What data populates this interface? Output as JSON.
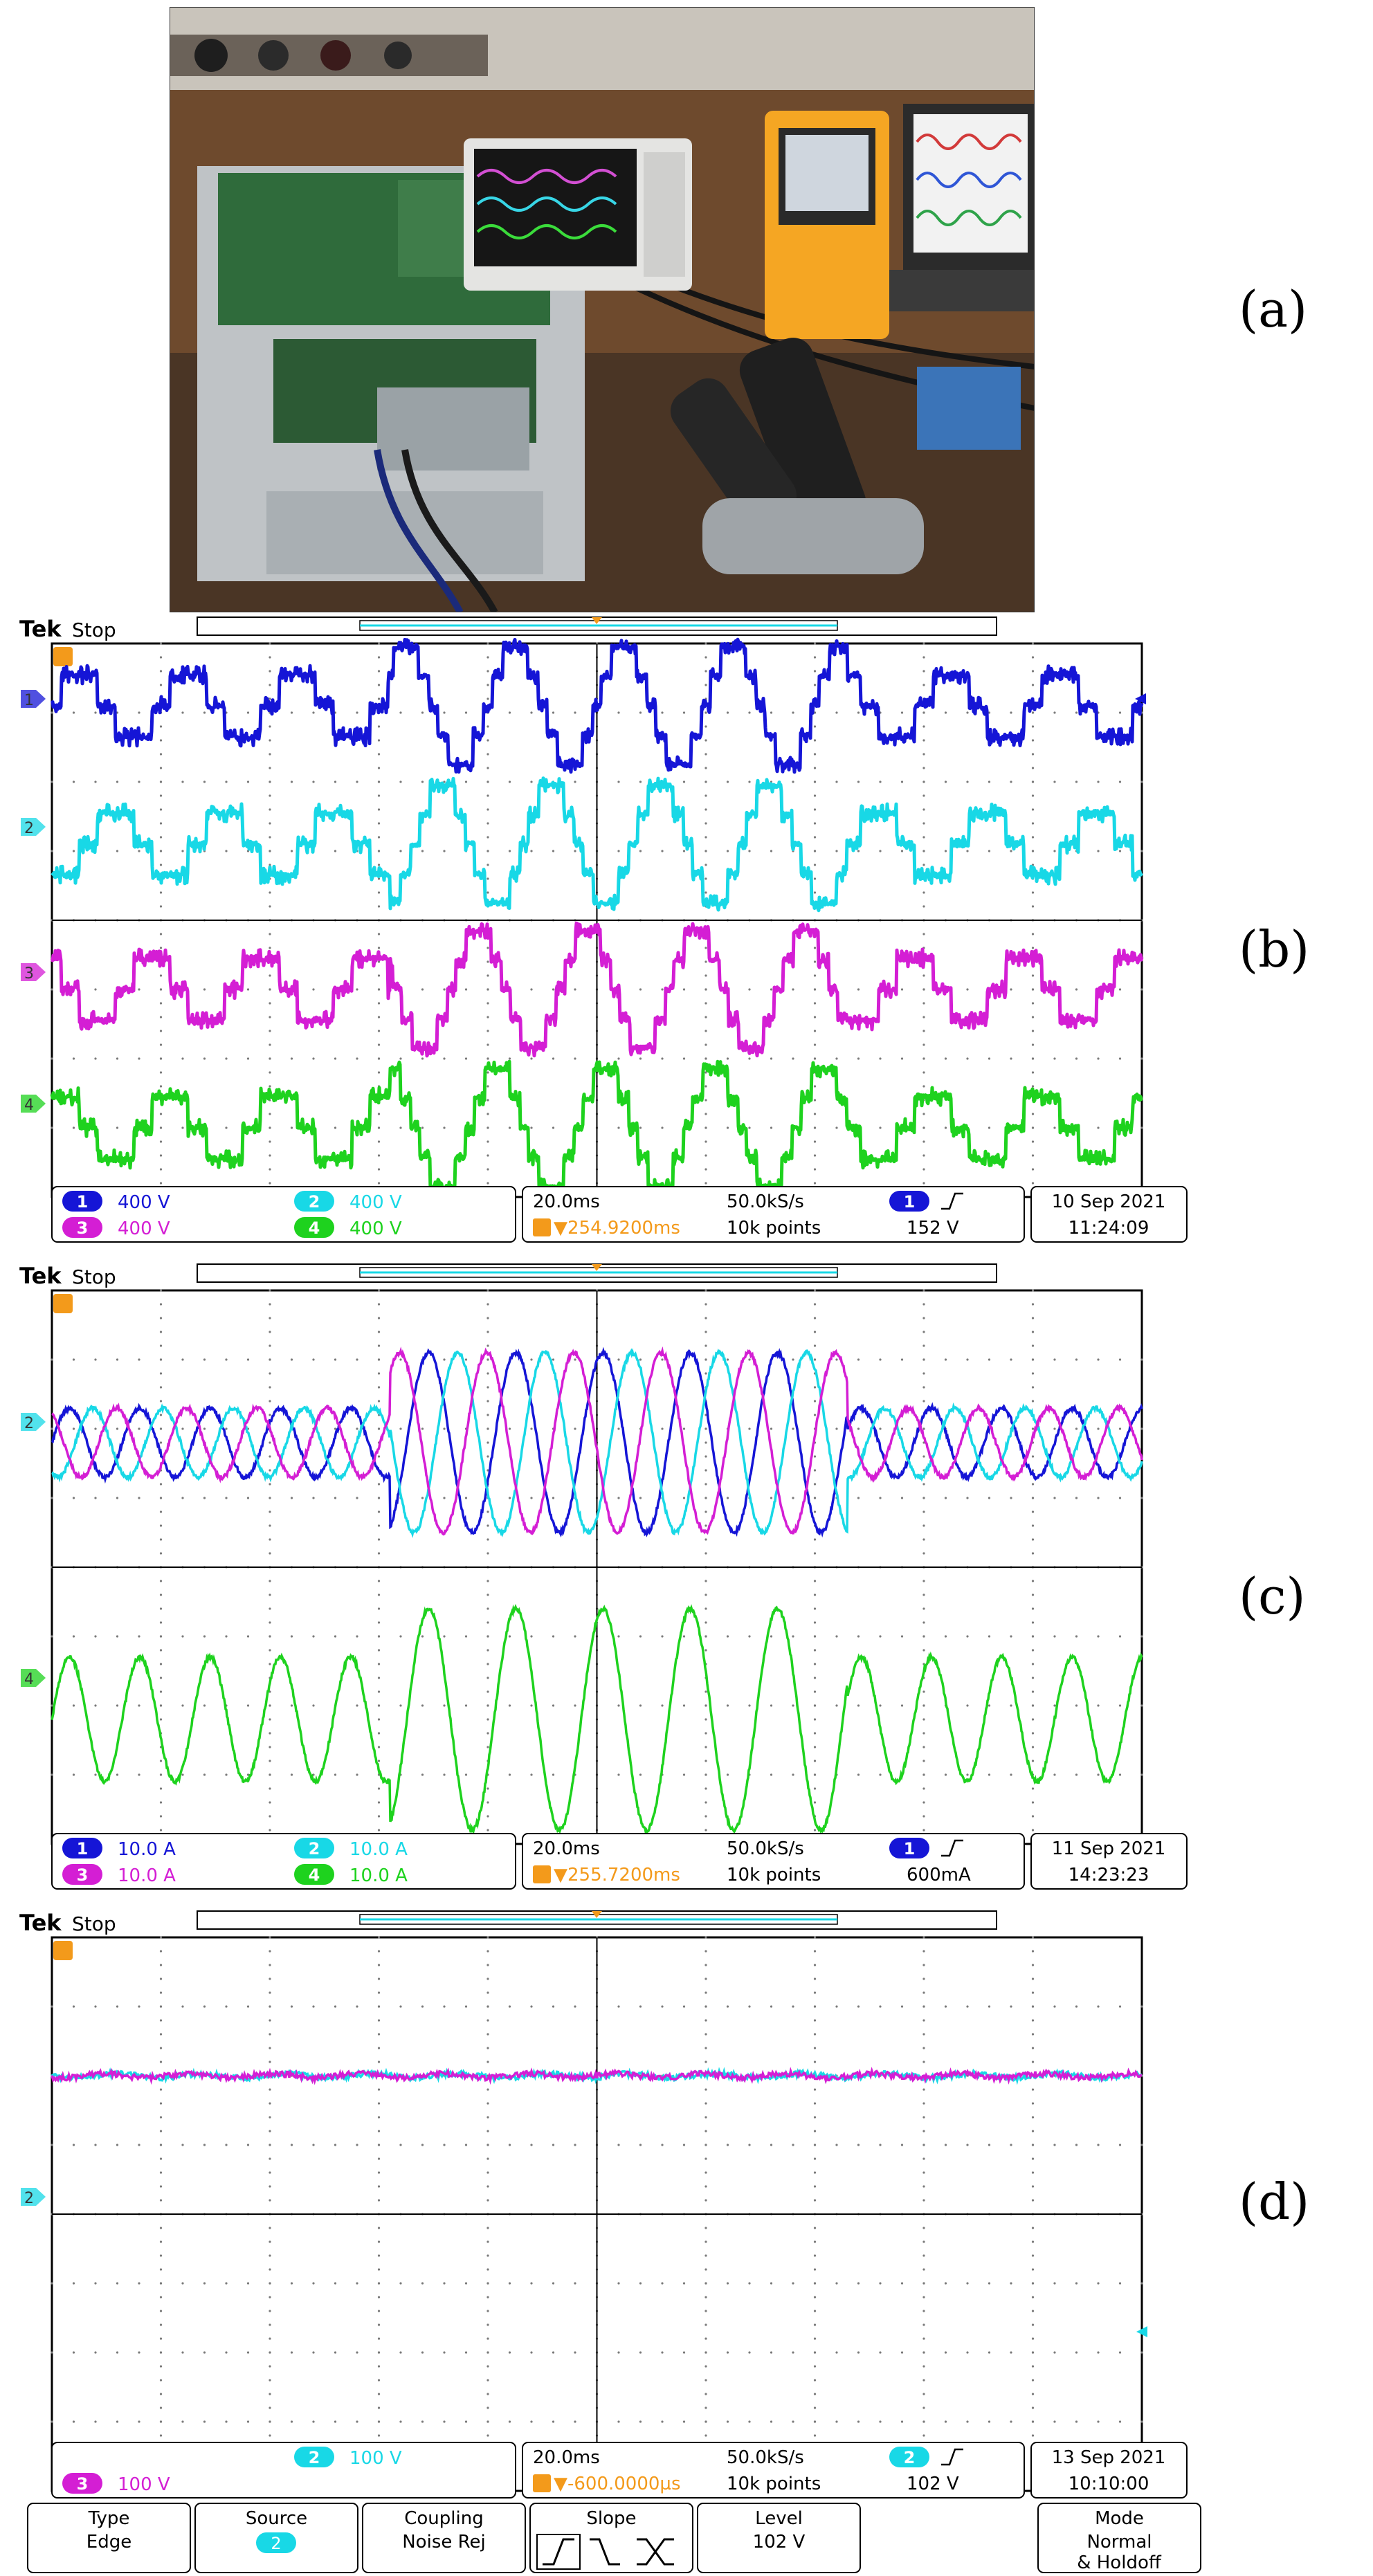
{
  "panel_labels": [
    "(a)",
    "(b)",
    "(c)",
    "(d)"
  ],
  "colors": {
    "ch1": "#1515d6",
    "ch2": "#18d8e6",
    "ch3": "#d41ed4",
    "ch4": "#1ed21e",
    "trigger": "#f39a1b",
    "grid": "#7a7a7a",
    "frame": "#000000"
  },
  "scopes": [
    {
      "id": "b",
      "brand": "Tek",
      "state": "Stop",
      "channels": [
        {
          "num": "1",
          "scale": "400 V"
        },
        {
          "num": "2",
          "scale": "400 V"
        },
        {
          "num": "3",
          "scale": "400 V"
        },
        {
          "num": "4",
          "scale": "400 V"
        }
      ],
      "timebase": "20.0ms",
      "sample_rate": "50.0kS/s",
      "trigger_pos": "▼254.9200ms",
      "record": "10k points",
      "trigger_ch": "1",
      "trigger_level": "152 V",
      "date": "10 Sep  2021",
      "time": "11:24:09"
    },
    {
      "id": "c",
      "brand": "Tek",
      "state": "Stop",
      "channels": [
        {
          "num": "1",
          "scale": "10.0 A"
        },
        {
          "num": "2",
          "scale": "10.0 A"
        },
        {
          "num": "3",
          "scale": "10.0 A"
        },
        {
          "num": "4",
          "scale": "10.0 A"
        }
      ],
      "timebase": "20.0ms",
      "sample_rate": "50.0kS/s",
      "trigger_pos": "▼255.7200ms",
      "record": "10k points",
      "trigger_ch": "1",
      "trigger_level": "600mA",
      "date": "11 Sep  2021",
      "time": "14:23:23"
    },
    {
      "id": "d",
      "brand": "Tek",
      "state": "Stop",
      "channels": [
        {
          "num": "2",
          "scale": "100 V"
        },
        {
          "num": "3",
          "scale": "100 V"
        }
      ],
      "timebase": "20.0ms",
      "sample_rate": "50.0kS/s",
      "trigger_pos": "▼-600.0000µs",
      "record": "10k points",
      "trigger_ch": "2",
      "trigger_level": "102 V",
      "date": "13 Sep  2021",
      "time": "10:10:00"
    }
  ],
  "trigger_menu": {
    "type_label": "Type",
    "type_value": "Edge",
    "source_label": "Source",
    "source_value": "2",
    "coupling_label": "Coupling",
    "coupling_value": "Noise Rej",
    "slope_label": "Slope",
    "level_label": "Level",
    "level_value": "102 V",
    "mode_label": "Mode",
    "mode_value": "Normal",
    "mode_value2": "& Holdoff"
  },
  "chart_data": [
    {
      "type": "line",
      "panel": "b",
      "description_source": "oscilloscope capture of four multilevel inverter voltages",
      "x_axis": {
        "unit": "ms",
        "per_div": 20,
        "divisions": 10
      },
      "series": [
        {
          "name": "1",
          "color": "#1515d6",
          "kind": "staircase",
          "levels_low": 3,
          "levels_high": 5,
          "cycles": 10,
          "phase_deg": 0,
          "offset_div": 0.9
        },
        {
          "name": "2",
          "color": "#18d8e6",
          "kind": "staircase",
          "levels_low": 3,
          "levels_high": 5,
          "cycles": 10,
          "phase_deg": -120,
          "offset_div": 2.9
        },
        {
          "name": "3",
          "color": "#d41ed4",
          "kind": "staircase",
          "levels_low": 3,
          "levels_high": 5,
          "cycles": 10,
          "phase_deg": 120,
          "offset_div": 5.0
        },
        {
          "name": "4",
          "color": "#1ed21e",
          "kind": "staircase",
          "levels_low": 3,
          "levels_high": 5,
          "cycles": 10,
          "phase_deg": 60,
          "offset_div": 7.0
        }
      ],
      "amplitude_change": {
        "low": [
          0,
          0.31
        ],
        "high": [
          0.31,
          0.73
        ],
        "low_after": [
          0.73,
          1.0
        ]
      }
    },
    {
      "type": "line",
      "panel": "c",
      "x_axis": {
        "unit": "ms",
        "per_div": 20,
        "divisions": 10
      },
      "series": [
        {
          "name": "1",
          "color": "#1515d6",
          "kind": "sine",
          "amp_low_div": 0.5,
          "amp_high_div": 1.3,
          "phase_deg": 0,
          "offset_div": 2.2
        },
        {
          "name": "2",
          "color": "#18d8e6",
          "kind": "sine",
          "amp_low_div": 0.5,
          "amp_high_div": 1.3,
          "phase_deg": -120,
          "offset_div": 2.2
        },
        {
          "name": "3",
          "color": "#d41ed4",
          "kind": "sine",
          "amp_low_div": 0.5,
          "amp_high_div": 1.3,
          "phase_deg": 120,
          "offset_div": 2.2
        },
        {
          "name": "4",
          "color": "#1ed21e",
          "kind": "sine",
          "amp_low_div": 0.9,
          "amp_high_div": 1.6,
          "phase_deg": 0,
          "offset_div": 6.2
        }
      ],
      "frequency_change": {
        "cycles_low_section": 2.3,
        "region_high": [
          0.31,
          0.73
        ]
      }
    },
    {
      "type": "line",
      "panel": "d",
      "x_axis": {
        "unit": "ms",
        "per_div": 20,
        "divisions": 10
      },
      "series": [
        {
          "name": "2",
          "color": "#18d8e6",
          "kind": "flat_noise",
          "offset_div": 2.0
        },
        {
          "name": "3",
          "color": "#d41ed4",
          "kind": "flat_noise",
          "offset_div": 2.0
        }
      ]
    }
  ]
}
